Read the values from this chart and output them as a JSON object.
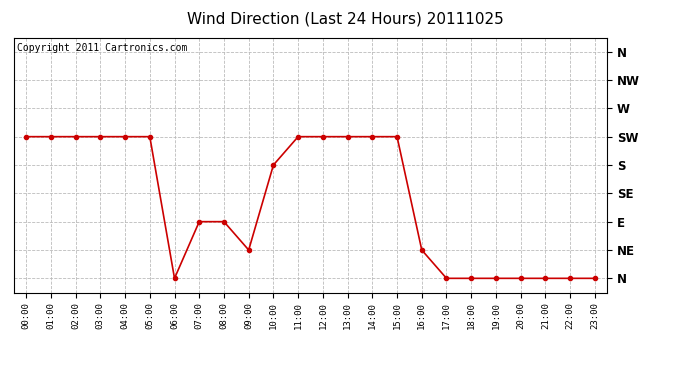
{
  "title": "Wind Direction (Last 24 Hours) 20111025",
  "copyright_text": "Copyright 2011 Cartronics.com",
  "x_labels": [
    "00:00",
    "01:00",
    "02:00",
    "03:00",
    "04:00",
    "05:00",
    "06:00",
    "07:00",
    "08:00",
    "09:00",
    "10:00",
    "11:00",
    "12:00",
    "13:00",
    "14:00",
    "15:00",
    "16:00",
    "17:00",
    "18:00",
    "19:00",
    "20:00",
    "21:00",
    "22:00",
    "23:00"
  ],
  "y_labels": [
    "N",
    "NE",
    "E",
    "SE",
    "S",
    "SW",
    "W",
    "NW",
    "N"
  ],
  "y_values": [
    0,
    1,
    2,
    3,
    4,
    5,
    6,
    7,
    8
  ],
  "wind_data": [
    5,
    5,
    5,
    5,
    5,
    5,
    0,
    2,
    2,
    1,
    4,
    5,
    5,
    5,
    5,
    5,
    1,
    0,
    0,
    0,
    0,
    0,
    0,
    0
  ],
  "line_color": "#cc0000",
  "marker": "o",
  "marker_size": 3,
  "background_color": "#ffffff",
  "grid_color": "#bbbbbb",
  "title_fontsize": 11,
  "copyright_fontsize": 7
}
